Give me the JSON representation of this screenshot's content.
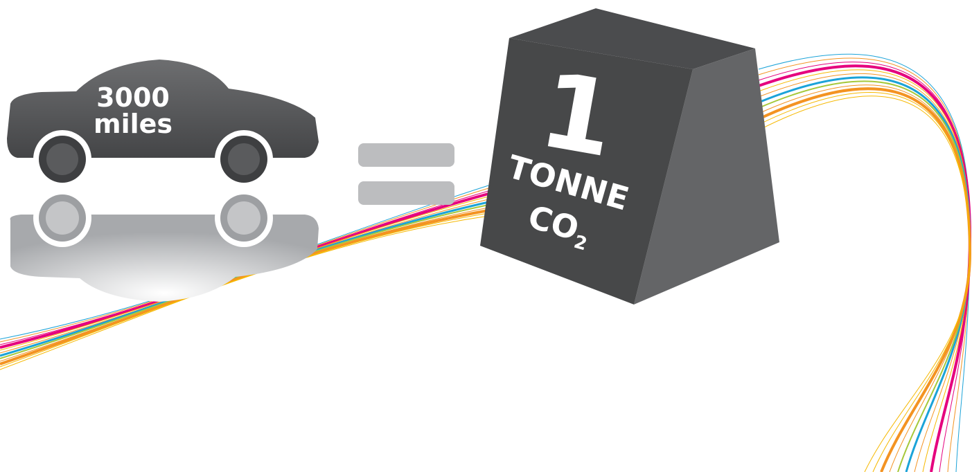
{
  "car": {
    "line1": "3000",
    "line2": "miles"
  },
  "weight": {
    "number": "1",
    "unit": "TONNE",
    "gas": "CO",
    "subscript": "2"
  }
}
